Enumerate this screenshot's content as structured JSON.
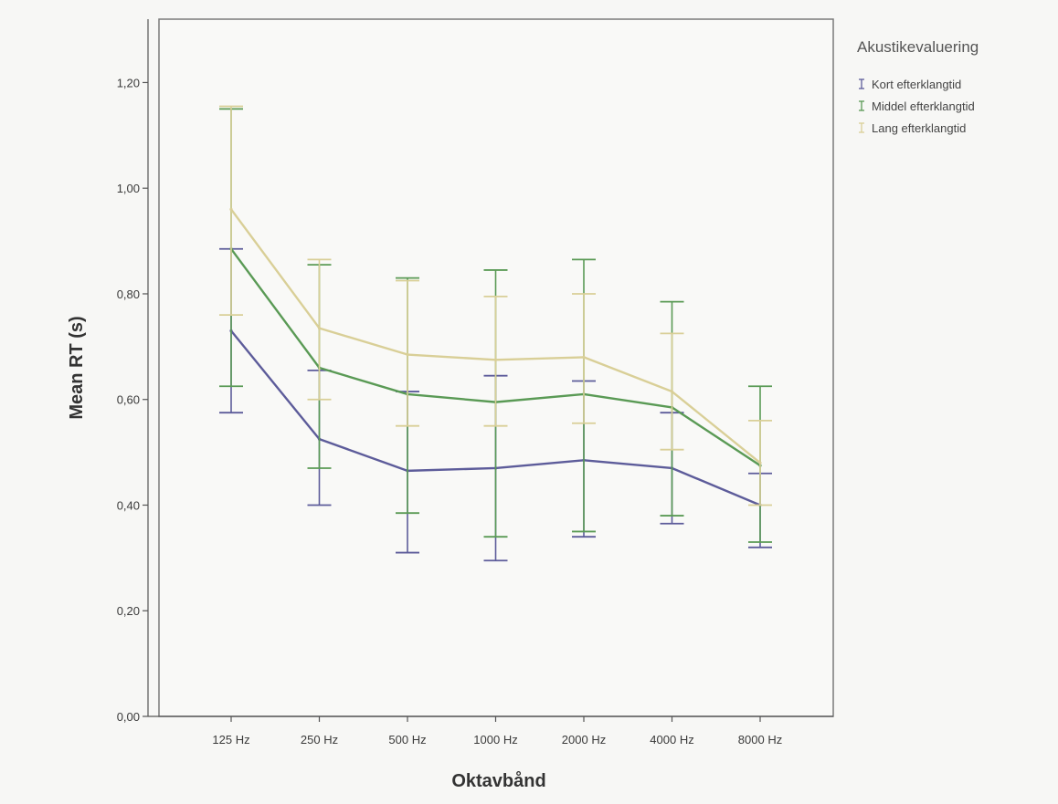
{
  "chart_data": {
    "type": "line",
    "categories": [
      "125 Hz",
      "250 Hz",
      "500 Hz",
      "1000 Hz",
      "2000 Hz",
      "4000 Hz",
      "8000 Hz"
    ],
    "xlabel": "Oktavbånd",
    "ylabel": "Mean RT (s)",
    "ylim": [
      0,
      1.32
    ],
    "yticks": [
      0,
      0.2,
      0.4,
      0.6,
      0.8,
      1.0,
      1.2
    ],
    "ytick_labels": [
      "0,00",
      "0,20",
      "0,40",
      "0,60",
      "0,80",
      "1,00",
      "1,20"
    ],
    "grid": false,
    "error_bars": true,
    "legend": {
      "title": "Akustikevaluering",
      "placement": "top-right-outside"
    },
    "series": [
      {
        "name": "Kort efterklangtid",
        "color": "#5d5c9a",
        "values": [
          0.73,
          0.525,
          0.465,
          0.47,
          0.485,
          0.47,
          0.4
        ],
        "lower": [
          0.575,
          0.4,
          0.31,
          0.295,
          0.34,
          0.365,
          0.32
        ],
        "upper": [
          0.885,
          0.655,
          0.615,
          0.645,
          0.635,
          0.575,
          0.46
        ]
      },
      {
        "name": "Middel efterklangtid",
        "color": "#5a9a55",
        "values": [
          0.885,
          0.66,
          0.61,
          0.595,
          0.61,
          0.585,
          0.475
        ],
        "lower": [
          0.625,
          0.47,
          0.385,
          0.34,
          0.35,
          0.38,
          0.33
        ],
        "upper": [
          1.15,
          0.855,
          0.83,
          0.845,
          0.865,
          0.785,
          0.625
        ]
      },
      {
        "name": "Lang efterklangtid",
        "color": "#d9cf97",
        "values": [
          0.96,
          0.735,
          0.685,
          0.675,
          0.68,
          0.615,
          0.48
        ],
        "lower": [
          0.76,
          0.6,
          0.55,
          0.55,
          0.555,
          0.505,
          0.4
        ],
        "upper": [
          1.155,
          0.865,
          0.825,
          0.795,
          0.8,
          0.725,
          0.56
        ]
      }
    ]
  }
}
